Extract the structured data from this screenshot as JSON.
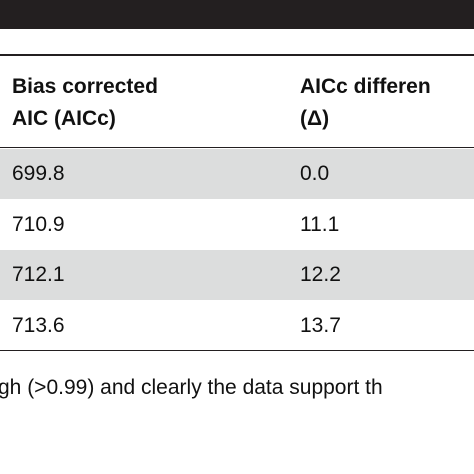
{
  "table": {
    "header": [
      [
        "Bias corrected",
        "AIC (AICc)"
      ],
      [
        "AICc differen",
        "(Δ)"
      ]
    ],
    "rows": [
      [
        "699.8",
        "0.0"
      ],
      [
        "710.9",
        "11.1"
      ],
      [
        "712.1",
        "12.2"
      ],
      [
        "713.6",
        "13.7"
      ]
    ]
  },
  "footnote": "gh (>0.99) and clearly the data support th"
}
